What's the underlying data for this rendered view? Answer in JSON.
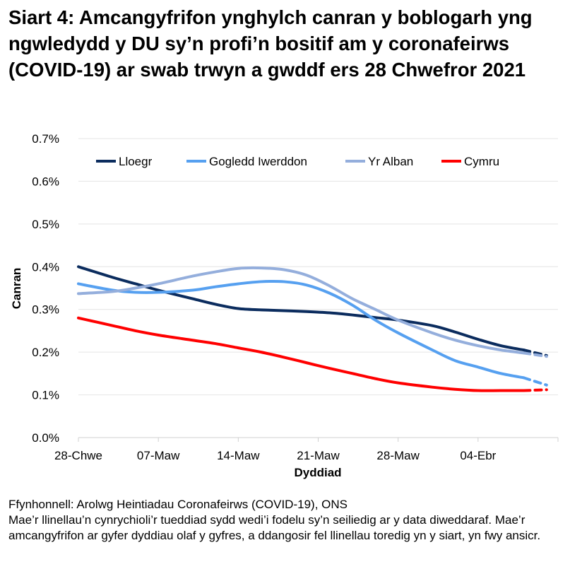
{
  "title": "Siart 4: Amcangyfrifon ynghylch canran y boblogarh yng ngwledydd y DU sy’n profi’n bositif am y coronafeirws (COVID-19) ar swab trwyn a gwddf ers 28 Chwefror 2021",
  "source": "Ffynhonnell: Arolwg Heintiadau Coronafeirws (COVID-19), ONS",
  "note": "Mae’r llinellau’n cynrychioli’r tueddiad sydd wedi’i fodelu sy’n seiliedig ar y data diweddaraf. Mae’r amcangyfrifon ar gyfer dyddiau olaf y gyfres, a ddangosir fel llinellau toredig yn y siart, yn fwy ansicr.",
  "chart_data": {
    "type": "line",
    "xlabel": "Dyddiad",
    "ylabel": "Canran",
    "xlim": [
      "2021-02-28",
      "2021-04-11"
    ],
    "ylim": [
      0,
      0.7
    ],
    "y_ticks": [
      "0.0%",
      "0.1%",
      "0.2%",
      "0.3%",
      "0.4%",
      "0.5%",
      "0.6%",
      "0.7%"
    ],
    "x_ticks": [
      {
        "date": "2021-02-28",
        "label": "28-Chwe"
      },
      {
        "date": "2021-03-07",
        "label": "07-Maw"
      },
      {
        "date": "2021-03-14",
        "label": "14-Maw"
      },
      {
        "date": "2021-03-21",
        "label": "21-Maw"
      },
      {
        "date": "2021-03-28",
        "label": "28-Maw"
      },
      {
        "date": "2021-04-04",
        "label": "04-Ebr"
      }
    ],
    "grid": "horizontal",
    "legend_position": "top",
    "dashed_from": "2021-04-08",
    "x": [
      "2021-02-28",
      "2021-03-03",
      "2021-03-05",
      "2021-03-07",
      "2021-03-10",
      "2021-03-12",
      "2021-03-14",
      "2021-03-16",
      "2021-03-18",
      "2021-03-20",
      "2021-03-22",
      "2021-03-24",
      "2021-03-26",
      "2021-03-28",
      "2021-03-31",
      "2021-04-02",
      "2021-04-04",
      "2021-04-06",
      "2021-04-08",
      "2021-04-10"
    ],
    "series": [
      {
        "name": "Lloegr",
        "color": "#0b2c5e",
        "values": [
          0.4,
          0.375,
          0.36,
          0.345,
          0.325,
          0.312,
          0.302,
          0.299,
          0.297,
          0.295,
          0.292,
          0.287,
          0.281,
          0.275,
          0.262,
          0.247,
          0.23,
          0.215,
          0.205,
          0.192
        ]
      },
      {
        "name": "Gogledd Iwerddon",
        "color": "#56a0f0",
        "values": [
          0.36,
          0.345,
          0.34,
          0.34,
          0.345,
          0.353,
          0.36,
          0.365,
          0.365,
          0.357,
          0.338,
          0.31,
          0.275,
          0.245,
          0.205,
          0.18,
          0.165,
          0.15,
          0.14,
          0.123
        ]
      },
      {
        "name": "Yr Alban",
        "color": "#94aedc",
        "values": [
          0.337,
          0.342,
          0.35,
          0.36,
          0.378,
          0.388,
          0.396,
          0.397,
          0.393,
          0.38,
          0.355,
          0.325,
          0.3,
          0.275,
          0.245,
          0.228,
          0.215,
          0.205,
          0.198,
          0.19
        ]
      },
      {
        "name": "Cymru",
        "color": "#ff0000",
        "values": [
          0.28,
          0.262,
          0.25,
          0.24,
          0.228,
          0.22,
          0.21,
          0.2,
          0.188,
          0.175,
          0.162,
          0.15,
          0.138,
          0.128,
          0.118,
          0.113,
          0.11,
          0.11,
          0.11,
          0.112
        ]
      }
    ]
  }
}
